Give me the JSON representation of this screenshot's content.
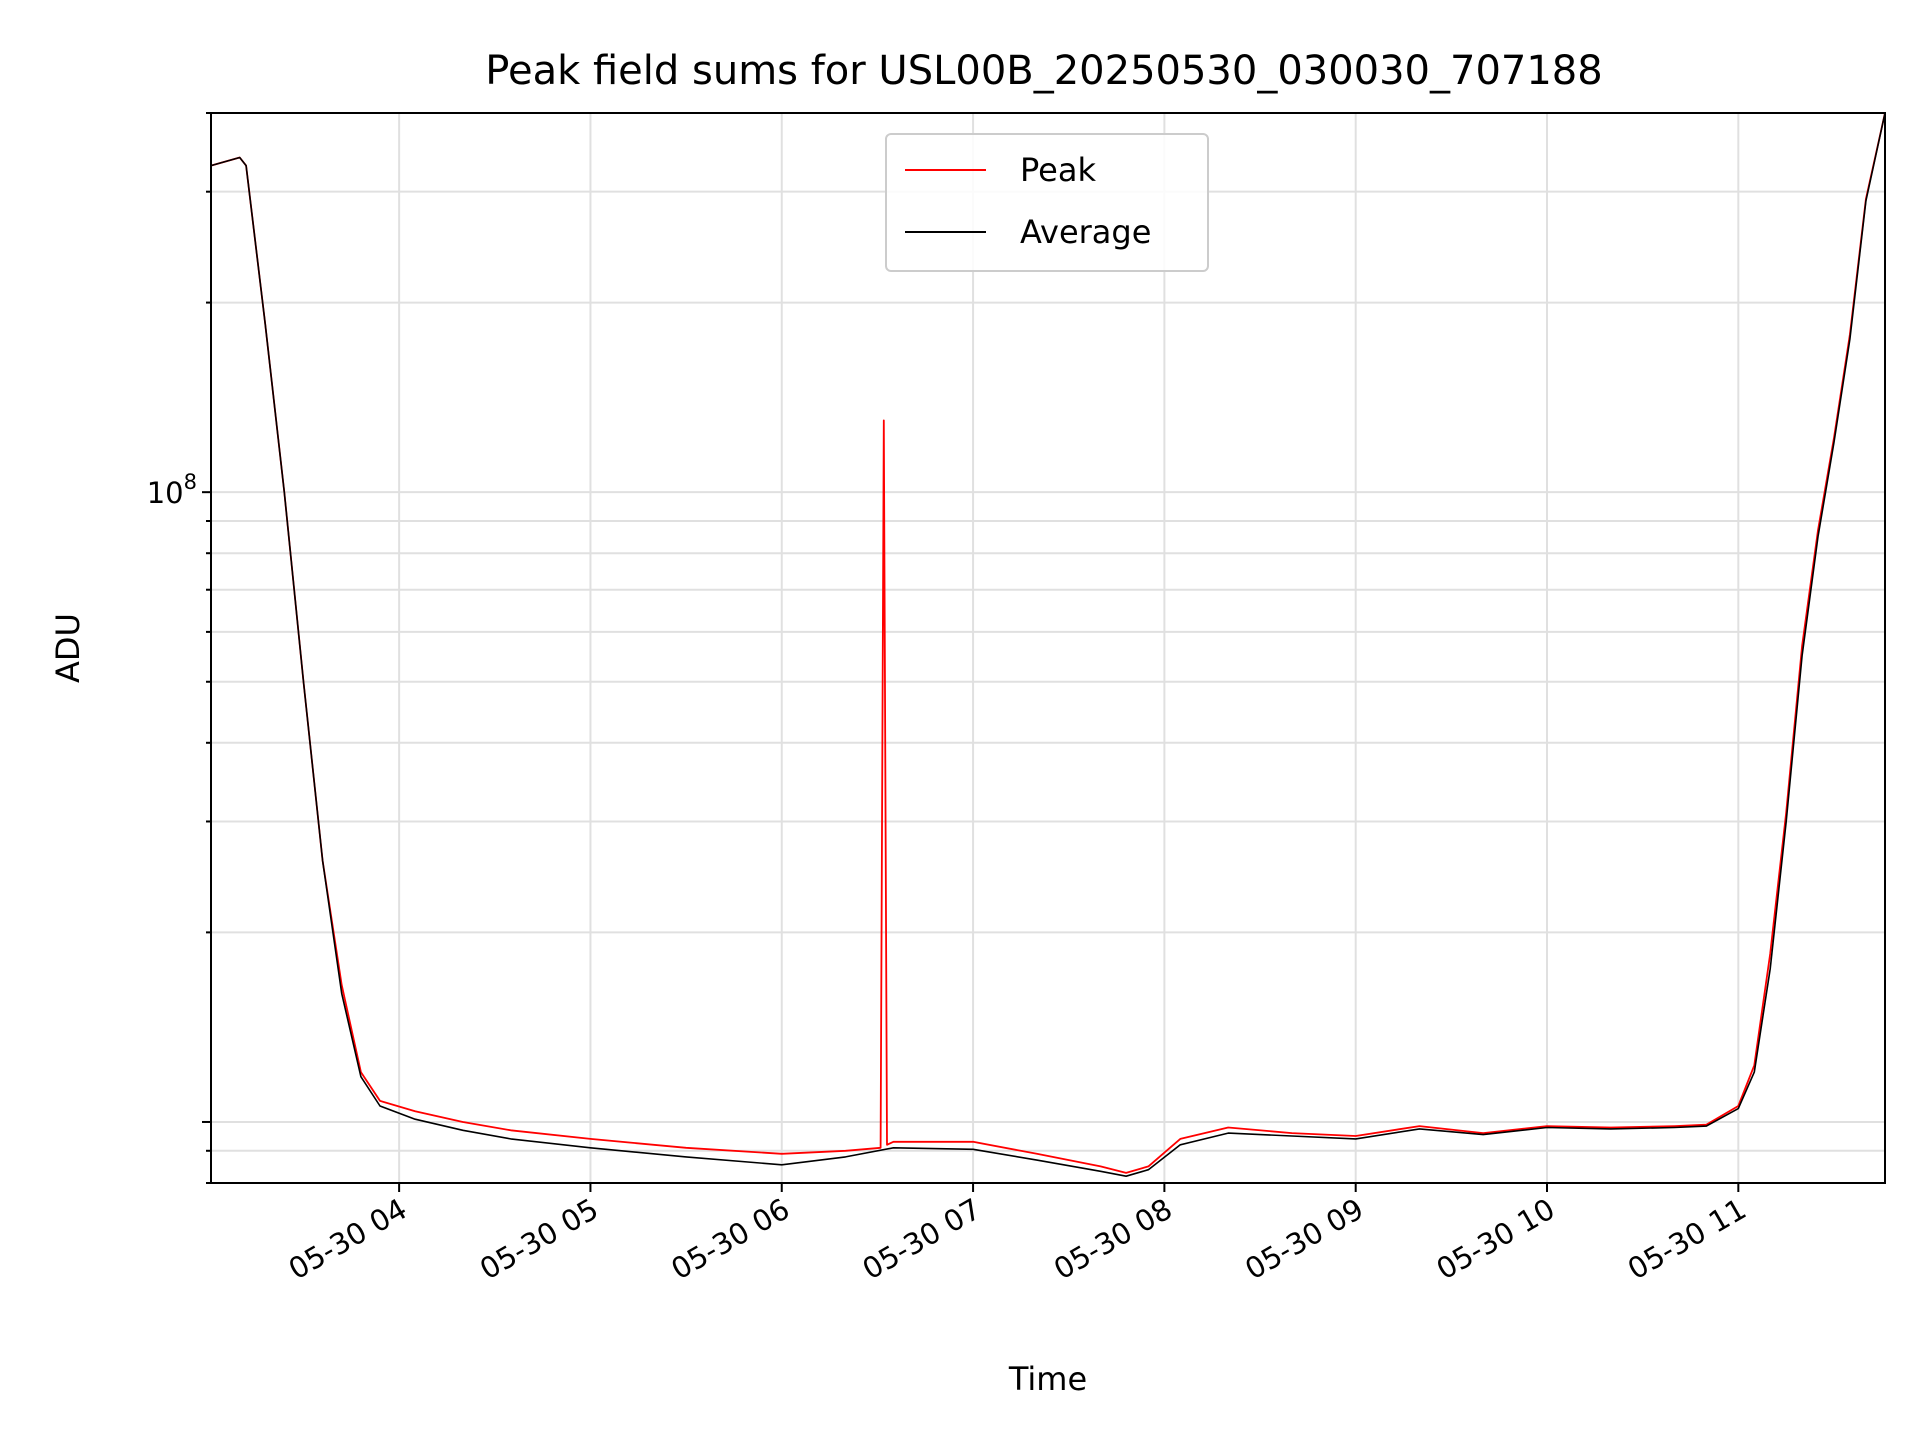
{
  "chart_data": {
    "type": "line",
    "title": "Peak field sums for USL00B_20250530_030030_707188",
    "xlabel": "Time",
    "ylabel": "ADU",
    "x_tick_labels": [
      "05-30 04",
      "05-30 05",
      "05-30 06",
      "05-30 07",
      "05-30 08",
      "05-30 09",
      "05-30 10",
      "05-30 11"
    ],
    "y_tick_labels": [
      "10^8"
    ],
    "y_scale": "log",
    "ylim": [
      8000000,
      400000000
    ],
    "xlim": [
      "2025-05-30 03:01",
      "2025-05-30 11:46"
    ],
    "grid": true,
    "legend_position": "upper center",
    "legend": [
      "Peak",
      "Average"
    ],
    "colors": {
      "Peak": "#ff0000",
      "Average": "#000000"
    },
    "series": [
      {
        "name": "Average",
        "x": [
          "2025-05-30 03:01",
          "2025-05-30 03:10",
          "2025-05-30 03:12",
          "2025-05-30 03:18",
          "2025-05-30 03:24",
          "2025-05-30 03:30",
          "2025-05-30 03:36",
          "2025-05-30 03:42",
          "2025-05-30 03:48",
          "2025-05-30 03:54",
          "2025-05-30 04:05",
          "2025-05-30 04:20",
          "2025-05-30 04:35",
          "2025-05-30 05:00",
          "2025-05-30 05:30",
          "2025-05-30 06:00",
          "2025-05-30 06:20",
          "2025-05-30 06:35",
          "2025-05-30 07:00",
          "2025-05-30 07:20",
          "2025-05-30 07:40",
          "2025-05-30 07:48",
          "2025-05-30 07:55",
          "2025-05-30 08:05",
          "2025-05-30 08:20",
          "2025-05-30 08:40",
          "2025-05-30 09:00",
          "2025-05-30 09:20",
          "2025-05-30 09:40",
          "2025-05-30 10:00",
          "2025-05-30 10:20",
          "2025-05-30 10:40",
          "2025-05-30 10:50",
          "2025-05-30 11:00",
          "2025-05-30 11:05",
          "2025-05-30 11:10",
          "2025-05-30 11:15",
          "2025-05-30 11:20",
          "2025-05-30 11:25",
          "2025-05-30 11:30",
          "2025-05-30 11:35",
          "2025-05-30 11:40",
          "2025-05-30 11:46"
        ],
        "y": [
          330000000,
          340000000,
          330000000,
          185000000,
          100000000,
          50000000,
          26000000,
          16000000,
          11800000,
          10600000,
          10100000,
          9700000,
          9400000,
          9100000,
          8800000,
          8550000,
          8800000,
          9100000,
          9050000,
          8700000,
          8350000,
          8200000,
          8400000,
          9200000,
          9600000,
          9500000,
          9400000,
          9750000,
          9550000,
          9800000,
          9750000,
          9800000,
          9850000,
          10500000,
          12000000,
          17500000,
          30000000,
          55000000,
          85000000,
          120000000,
          175000000,
          290000000,
          400000000
        ]
      },
      {
        "name": "Peak",
        "x": [
          "2025-05-30 03:01",
          "2025-05-30 03:10",
          "2025-05-30 03:12",
          "2025-05-30 03:18",
          "2025-05-30 03:24",
          "2025-05-30 03:30",
          "2025-05-30 03:36",
          "2025-05-30 03:42",
          "2025-05-30 03:48",
          "2025-05-30 03:54",
          "2025-05-30 04:05",
          "2025-05-30 04:20",
          "2025-05-30 04:35",
          "2025-05-30 05:00",
          "2025-05-30 05:30",
          "2025-05-30 06:00",
          "2025-05-30 06:20",
          "2025-05-30 06:31",
          "2025-05-30 06:32",
          "2025-05-30 06:33",
          "2025-05-30 06:35",
          "2025-05-30 07:00",
          "2025-05-30 07:20",
          "2025-05-30 07:40",
          "2025-05-30 07:48",
          "2025-05-30 07:55",
          "2025-05-30 08:05",
          "2025-05-30 08:20",
          "2025-05-30 08:40",
          "2025-05-30 09:00",
          "2025-05-30 09:20",
          "2025-05-30 09:40",
          "2025-05-30 10:00",
          "2025-05-30 10:20",
          "2025-05-30 10:40",
          "2025-05-30 10:50",
          "2025-05-30 11:00",
          "2025-05-30 11:05",
          "2025-05-30 11:10",
          "2025-05-30 11:15",
          "2025-05-30 11:20",
          "2025-05-30 11:25",
          "2025-05-30 11:30",
          "2025-05-30 11:35",
          "2025-05-30 11:40",
          "2025-05-30 11:46"
        ],
        "y": [
          330000000,
          340000000,
          330000000,
          185000000,
          100000000,
          50000000,
          26000000,
          16500000,
          12000000,
          10800000,
          10400000,
          10000000,
          9700000,
          9400000,
          9100000,
          8900000,
          9000000,
          9100000,
          130000000,
          9200000,
          9300000,
          9300000,
          8900000,
          8500000,
          8300000,
          8500000,
          9400000,
          9800000,
          9600000,
          9500000,
          9850000,
          9600000,
          9850000,
          9800000,
          9850000,
          9900000,
          10600000,
          12300000,
          18500000,
          31000000,
          57000000,
          87000000,
          122000000,
          178000000,
          292000000,
          400000000
        ]
      }
    ]
  }
}
